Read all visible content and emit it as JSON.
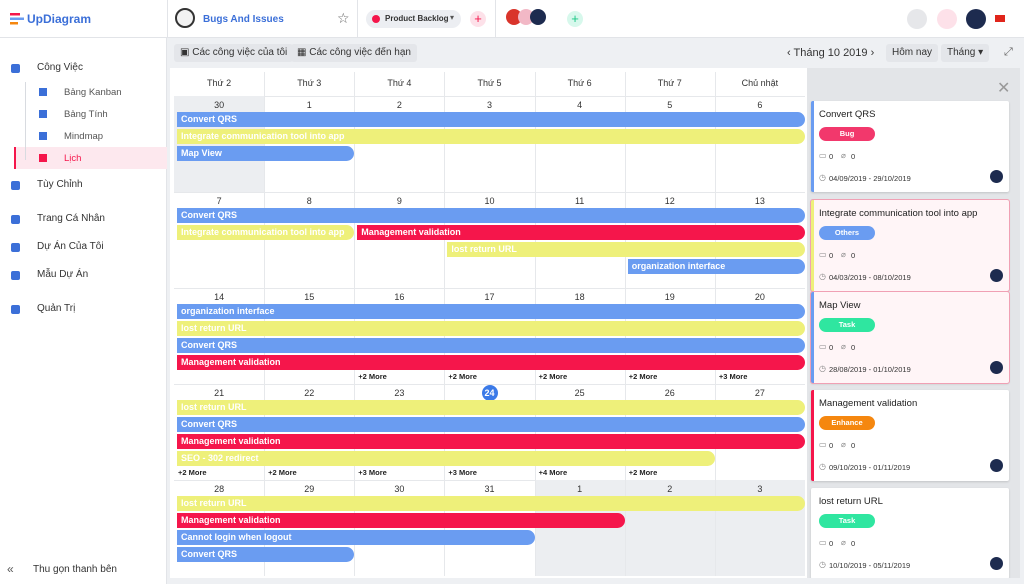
{
  "header": {
    "brand": "UpDiagram",
    "project": "Bugs And Issues",
    "backlog": "Product Backlog"
  },
  "sidebar": {
    "items": [
      {
        "label": "Công Việc",
        "children": [
          "Bảng Kanban",
          "Bảng Tính",
          "Mindmap",
          "Lịch"
        ]
      },
      {
        "label": "Tùy Chỉnh"
      },
      {
        "label": "Trang Cá Nhân"
      },
      {
        "label": "Dự Án Của Tôi"
      },
      {
        "label": "Mẫu Dự Án"
      },
      {
        "label": "Quản Trị"
      }
    ],
    "collapse": "Thu gọn thanh bên"
  },
  "toolbar": {
    "my_tasks": "Các công việc của tôi",
    "due_tasks": "Các công việc đến hạn",
    "month": "Tháng 10 2019",
    "today": "Hôm nay",
    "view": "Tháng"
  },
  "calendar": {
    "weekdays": [
      "Thứ 2",
      "Thứ 3",
      "Thứ 4",
      "Thứ 5",
      "Thứ 6",
      "Thứ 7",
      "Chủ nhật"
    ],
    "weeks": [
      {
        "days": [
          30,
          1,
          2,
          3,
          4,
          5,
          6
        ],
        "events": [
          {
            "title": "Convert QRS",
            "color": "#6a9cf1"
          },
          {
            "title": "Integrate communication tool into app",
            "color": "#eef07a"
          },
          {
            "title": "Map View",
            "color": "#6a9cf1"
          }
        ],
        "more": [
          null,
          null,
          null,
          null,
          null,
          null,
          null
        ]
      },
      {
        "days": [
          7,
          8,
          9,
          10,
          11,
          12,
          13
        ],
        "events": [
          {
            "title": "Convert QRS",
            "color": "#6a9cf1"
          },
          {
            "title": "Integrate communication tool into app",
            "color": "#eef07a"
          },
          {
            "title": "Management validation",
            "color": "#f5164b"
          },
          {
            "title": "lost return URL",
            "color": "#eef07a"
          },
          {
            "title": "organization interface",
            "color": "#6a9cf1"
          }
        ],
        "more": [
          null,
          null,
          null,
          null,
          null,
          null,
          null
        ]
      },
      {
        "days": [
          14,
          15,
          16,
          17,
          18,
          19,
          20
        ],
        "events": [
          {
            "title": "organization interface",
            "color": "#6a9cf1"
          },
          {
            "title": "lost return URL",
            "color": "#eef07a"
          },
          {
            "title": "Convert QRS",
            "color": "#6a9cf1"
          },
          {
            "title": "Management validation",
            "color": "#f5164b"
          }
        ],
        "more": [
          null,
          null,
          "+2 More",
          "+2 More",
          "+2 More",
          "+2 More",
          "+3 More"
        ]
      },
      {
        "days": [
          21,
          22,
          23,
          24,
          25,
          26,
          27
        ],
        "events": [
          {
            "title": "lost return URL",
            "color": "#eef07a"
          },
          {
            "title": "Convert QRS",
            "color": "#6a9cf1"
          },
          {
            "title": "Management validation",
            "color": "#f5164b"
          },
          {
            "title": "SEO - 302 redirect",
            "color": "#eef07a"
          }
        ],
        "more": [
          "+2 More",
          "+2 More",
          "+3 More",
          "+3 More",
          "+4 More",
          "+2 More",
          null
        ]
      },
      {
        "days": [
          28,
          29,
          30,
          31,
          1,
          2,
          3
        ],
        "events": [
          {
            "title": "lost return URL",
            "color": "#eef07a"
          },
          {
            "title": "Management validation",
            "color": "#f5164b"
          },
          {
            "title": "Cannot login when logout",
            "color": "#6a9cf1"
          },
          {
            "title": "Convert QRS",
            "color": "#6a9cf1"
          }
        ],
        "more": [
          null,
          null,
          null,
          null,
          null,
          null,
          null
        ]
      }
    ]
  },
  "cards": [
    {
      "title": "Convert QRS",
      "tag": "Bug",
      "tag_color": "#f2386c",
      "accent": "#6a9cf1",
      "comments": 0,
      "attachments": 0,
      "dates": "04/09/2019 - 29/10/2019"
    },
    {
      "title": "Integrate communication tool into app",
      "tag": "Others",
      "tag_color": "#6a9cf1",
      "accent": "#eef07a",
      "comments": 0,
      "attachments": 0,
      "dates": "04/03/2019 - 08/10/2019"
    },
    {
      "title": "Map View",
      "tag": "Task",
      "tag_color": "#2fe6a0",
      "accent": "#6a9cf1",
      "comments": 0,
      "attachments": 0,
      "dates": "28/08/2019 - 01/10/2019"
    },
    {
      "title": "Management validation",
      "tag": "Enhance",
      "tag_color": "#f5870f",
      "accent": "#f5164b",
      "comments": 0,
      "attachments": 0,
      "dates": "09/10/2019 - 01/11/2019"
    },
    {
      "title": "lost return URL",
      "tag": "Task",
      "tag_color": "#2fe6a0",
      "accent": "#ffffff",
      "comments": 0,
      "attachments": 0,
      "dates": "10/10/2019 - 05/11/2019"
    }
  ]
}
